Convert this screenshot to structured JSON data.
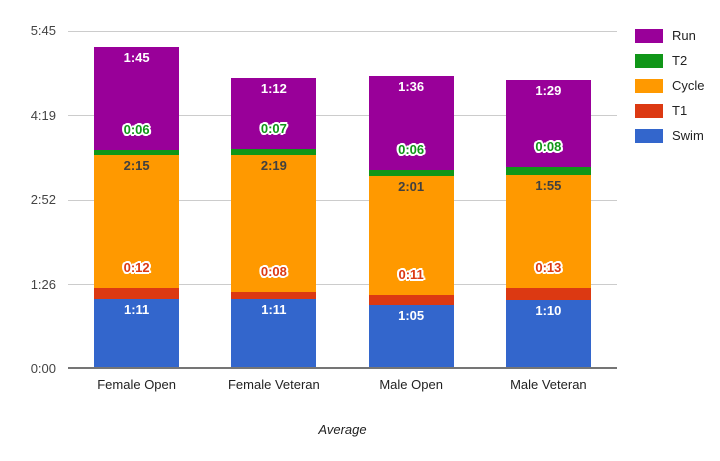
{
  "page": {
    "background": "#ffffff"
  },
  "chart_data": {
    "type": "bar",
    "stacked": true,
    "orientation": "vertical",
    "title": "",
    "xlabel": "Average",
    "ylabel": "",
    "categories": [
      "Female Open",
      "Female Veteran",
      "Male Open",
      "Male Veteran"
    ],
    "series": [
      {
        "name": "Swim",
        "color": "#3366cc",
        "values": [
          "1:11",
          "1:11",
          "1:05",
          "1:10"
        ],
        "label_style": "inside-white"
      },
      {
        "name": "T1",
        "color": "#dc3912",
        "values": [
          "0:12",
          "0:08",
          "0:11",
          "0:13"
        ],
        "label_style": "callout-outline"
      },
      {
        "name": "Cycle",
        "color": "#ff9900",
        "values": [
          "2:15",
          "2:19",
          "2:01",
          "1:55"
        ],
        "label_style": "inside-dark"
      },
      {
        "name": "T2",
        "color": "#109618",
        "values": [
          "0:06",
          "0:07",
          "0:06",
          "0:08"
        ],
        "label_style": "callout-outline"
      },
      {
        "name": "Run",
        "color": "#990099",
        "values": [
          "1:45",
          "1:12",
          "1:36",
          "1:29"
        ],
        "label_style": "inside-white"
      }
    ],
    "y_axis": {
      "ticks": [
        "0:00",
        "1:26",
        "2:52",
        "4:19",
        "5:45"
      ],
      "max_minutes": 345
    },
    "legend": {
      "position": "right",
      "items": [
        {
          "label": "Run",
          "color": "#990099"
        },
        {
          "label": "T2",
          "color": "#109618"
        },
        {
          "label": "Cycle",
          "color": "#ff9900"
        },
        {
          "label": "T1",
          "color": "#dc3912"
        },
        {
          "label": "Swim",
          "color": "#3366cc"
        }
      ]
    },
    "grid": {
      "show": true,
      "color": "#cccccc",
      "baseline_color": "#757575"
    }
  }
}
